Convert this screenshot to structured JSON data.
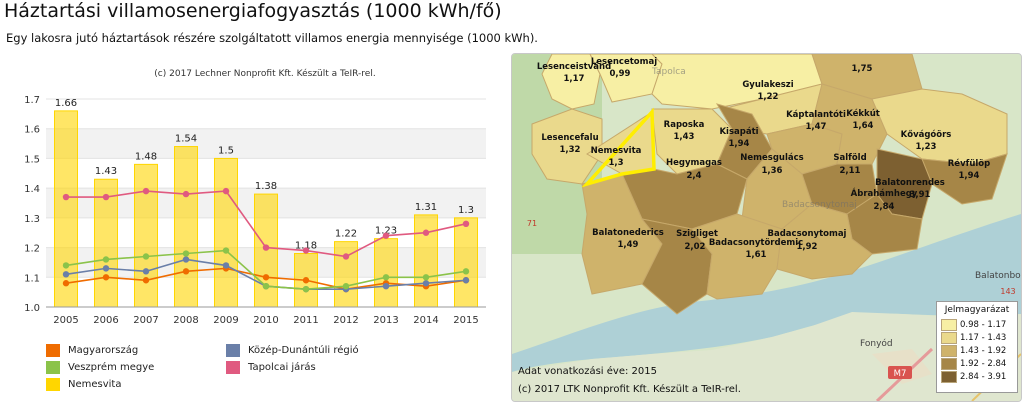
{
  "page": {
    "title": "Háztartási villamosenergiafogyasztás (1000 kWh/fő)",
    "subtitle": "Egy lakosra jutó háztartások részére szolgáltatott villamos energia mennyisége (1000 kWh)."
  },
  "chart_data": {
    "type": "bar",
    "subtitle": "(c) 2017 Lechner Nonprofit Kft. Készült a TeIR-rel.",
    "categories": [
      "2005",
      "2006",
      "2007",
      "2008",
      "2009",
      "2010",
      "2011",
      "2012",
      "2013",
      "2014",
      "2015"
    ],
    "ylim": [
      1.0,
      1.7
    ],
    "yticks": [
      "1.0",
      "1.1",
      "1.2",
      "1.3",
      "1.4",
      "1.5",
      "1.6",
      "1.7"
    ],
    "grid": true,
    "legend_position": "bottom",
    "bar_series": {
      "name": "Nemesvita",
      "color": "#ffd600",
      "values": [
        1.66,
        1.43,
        1.48,
        1.54,
        1.5,
        1.38,
        1.18,
        1.22,
        1.23,
        1.31,
        1.3
      ],
      "labels": [
        "1.66",
        "1.43",
        "1.48",
        "1.54",
        "1.5",
        "1.38",
        "1.18",
        "1.22",
        "1.23",
        "1.31",
        "1.3"
      ]
    },
    "line_series": [
      {
        "name": "Magyarország",
        "color": "#ef6c00",
        "values": [
          1.08,
          1.1,
          1.09,
          1.12,
          1.13,
          1.1,
          1.09,
          1.06,
          1.08,
          1.07,
          1.09
        ]
      },
      {
        "name": "Közép-Dunántúli régió",
        "color": "#6a7fa8",
        "values": [
          1.11,
          1.13,
          1.12,
          1.16,
          1.14,
          1.07,
          1.06,
          1.06,
          1.07,
          1.08,
          1.09
        ]
      },
      {
        "name": "Veszprém megye",
        "color": "#8bc34a",
        "values": [
          1.14,
          1.16,
          1.17,
          1.18,
          1.19,
          1.07,
          1.06,
          1.07,
          1.1,
          1.1,
          1.12
        ]
      },
      {
        "name": "Tapolcai járás",
        "color": "#e05a80",
        "values": [
          1.37,
          1.37,
          1.39,
          1.38,
          1.39,
          1.2,
          1.19,
          1.17,
          1.24,
          1.25,
          1.28
        ]
      }
    ],
    "legend": [
      {
        "name": "Magyarország",
        "color": "#ef6c00"
      },
      {
        "name": "Közép-Dunántúli régió",
        "color": "#6a7fa8"
      },
      {
        "name": "Veszprém megye",
        "color": "#8bc34a"
      },
      {
        "name": "Tapolcai járás",
        "color": "#e05a80"
      },
      {
        "name": "Nemesvita",
        "color": "#ffd600"
      }
    ]
  },
  "map": {
    "year_note": "Adat vonatkozási éve: 2015",
    "credit": "(c) 2017 LTK Nonprofit Kft. Készült a TeIR-rel.",
    "legend_title": "Jelmagyarázat",
    "legend": [
      {
        "range": "0.98 - 1.17",
        "color": "#f7efa4"
      },
      {
        "range": "1.17 - 1.43",
        "color": "#ead98c"
      },
      {
        "range": "1.43 - 1.92",
        "color": "#cfb36b"
      },
      {
        "range": "1.92 - 2.84",
        "color": "#a68647"
      },
      {
        "range": "2.84 - 3.91",
        "color": "#7d6031"
      }
    ],
    "places": [
      {
        "name": "Lesenceistvánd",
        "value": "1,17"
      },
      {
        "name": "Lesencetomaj",
        "value": "0,99"
      },
      {
        "name": "",
        "value": "1,75"
      },
      {
        "name": "Gyulakeszi",
        "value": "1,22"
      },
      {
        "name": "Raposka",
        "value": "1,43"
      },
      {
        "name": "Kisapáti",
        "value": "1,94"
      },
      {
        "name": "Káptalantóti",
        "value": "1,47"
      },
      {
        "name": "Kékkút",
        "value": "1,64"
      },
      {
        "name": "Kővágóörs",
        "value": "1,23"
      },
      {
        "name": "Lesencefalu",
        "value": "1,32"
      },
      {
        "name": "Nemesvita",
        "value": "1,3"
      },
      {
        "name": "Hegymagas",
        "value": "2,4"
      },
      {
        "name": "Nemesgulács",
        "value": "1,36"
      },
      {
        "name": "Salföld",
        "value": "2,11"
      },
      {
        "name": "Révfülöp",
        "value": "1,94"
      },
      {
        "name": "Balatonrendes",
        "value": "3,91"
      },
      {
        "name": "Ábrahámhegy",
        "value": "2,84"
      },
      {
        "name": "Balatonederics",
        "value": "1,49"
      },
      {
        "name": "Szigliget",
        "value": "2,02"
      },
      {
        "name": "Badacsonytördemic",
        "value": "1,61"
      },
      {
        "name": "Badacsonytomaj",
        "value": "1,92"
      }
    ],
    "basemap_labels": {
      "tapolca": "Tapolca",
      "badacsonytomaj_faint": "Badacsonytomaj",
      "fonyod": "Fonyód",
      "balatonboglar": "Balatonbog",
      "road_m7": "M7",
      "road_71": "71",
      "road_143": "143"
    }
  }
}
